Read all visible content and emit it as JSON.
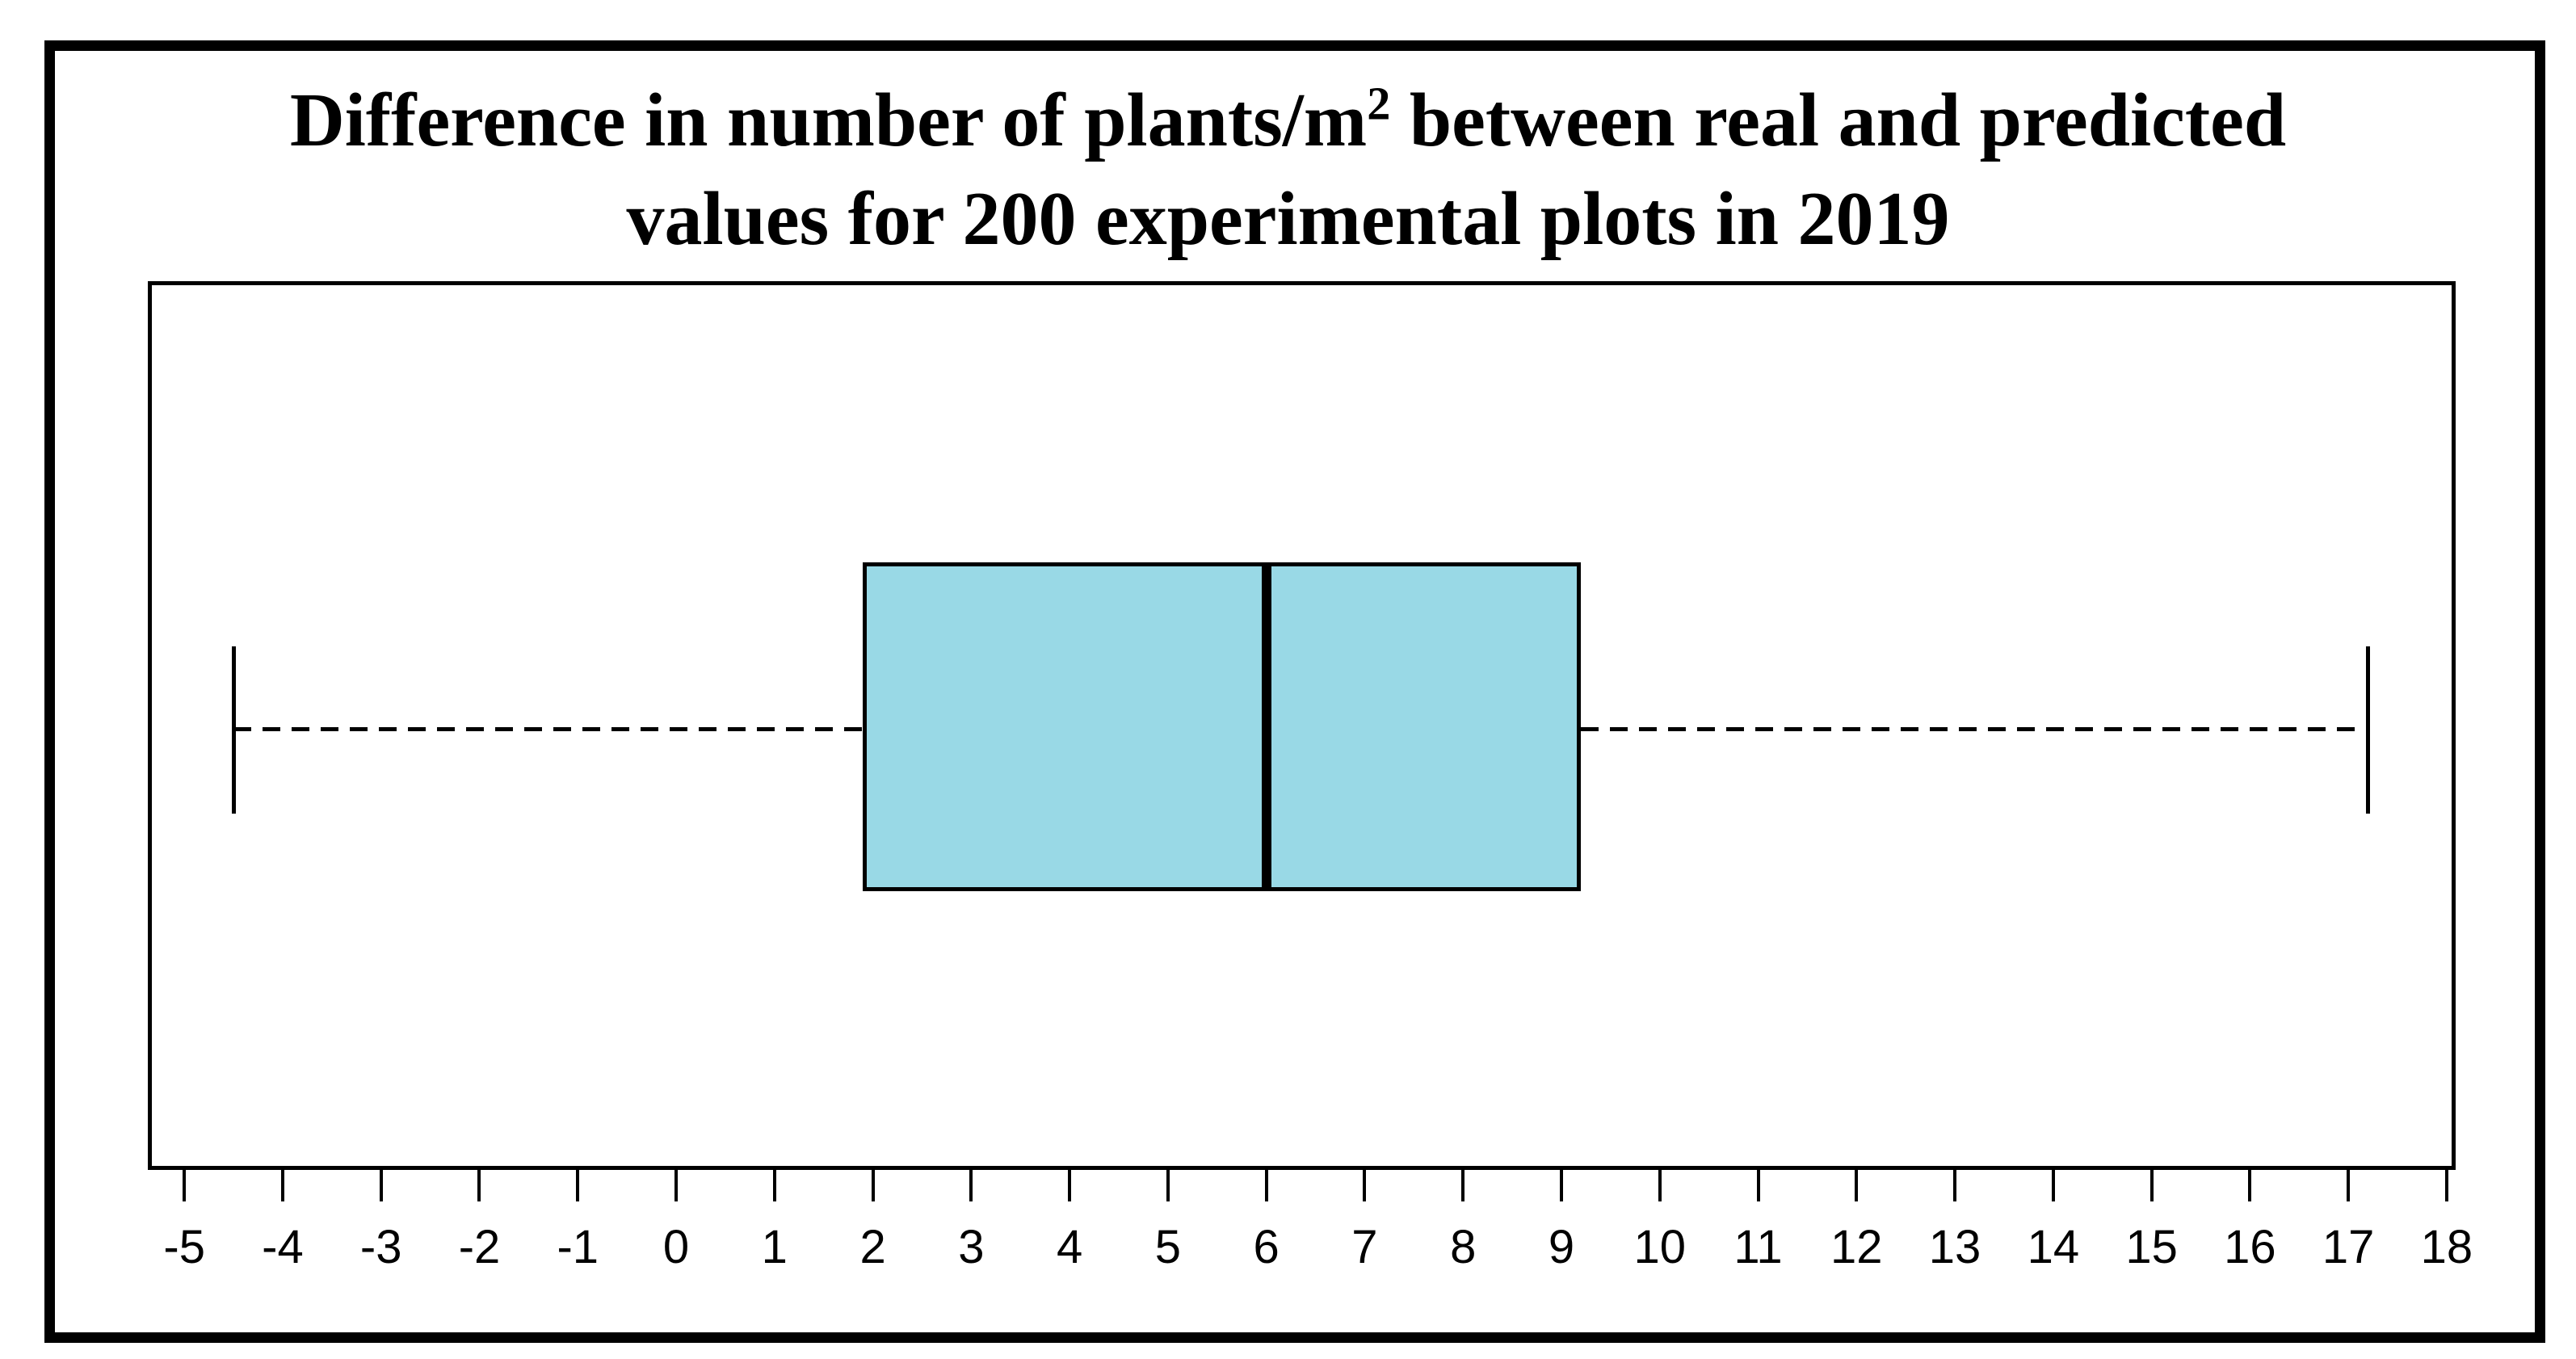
{
  "figure": {
    "title_line1_pre": "Difference in number of plants/m",
    "title_line1_sup": "2",
    "title_line1_post": " between real and predicted",
    "title_line2": "values for 200 experimental plots in 2019"
  },
  "chart_data": {
    "type": "boxplot",
    "orientation": "horizontal",
    "title": "Difference in number of plants/m² between real and predicted values for 200 experimental plots in 2019",
    "stats": {
      "whisker_low": -4.5,
      "q1": 1.9,
      "median": 6,
      "q3": 9.2,
      "whisker_high": 17.2
    },
    "outliers": [],
    "x_ticks": [
      -5,
      -4,
      -3,
      -2,
      -1,
      0,
      1,
      2,
      3,
      4,
      5,
      6,
      7,
      8,
      9,
      10,
      11,
      12,
      13,
      14,
      15,
      16,
      17,
      18
    ],
    "xlim": [
      -5.33,
      18.05
    ],
    "xlabel": "",
    "ylabel": "",
    "grid": false,
    "legend": false,
    "box_fill_color": "#99D9E6",
    "line_color": "#000000",
    "whisker_line_style": "dashed"
  }
}
